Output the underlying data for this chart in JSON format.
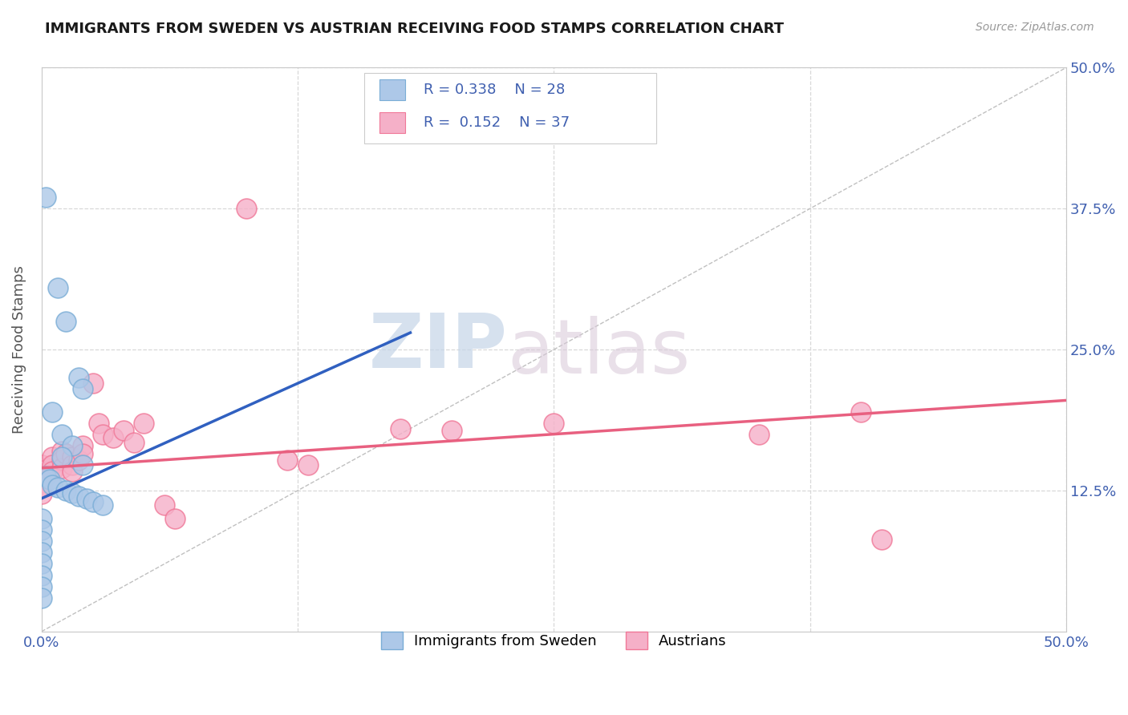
{
  "title": "IMMIGRANTS FROM SWEDEN VS AUSTRIAN RECEIVING FOOD STAMPS CORRELATION CHART",
  "source": "Source: ZipAtlas.com",
  "ylabel": "Receiving Food Stamps",
  "xlim": [
    0.0,
    0.5
  ],
  "ylim": [
    0.0,
    0.5
  ],
  "xticks": [
    0.0,
    0.125,
    0.25,
    0.375,
    0.5
  ],
  "xticklabels": [
    "0.0%",
    "",
    "",
    "",
    "50.0%"
  ],
  "yticks": [
    0.0,
    0.125,
    0.25,
    0.375,
    0.5
  ],
  "yticklabels": [
    "",
    "12.5%",
    "25.0%",
    "37.5%",
    "50.0%"
  ],
  "sweden_color": "#adc8e8",
  "austria_color": "#f5b0c8",
  "sweden_edge": "#7aadd6",
  "austria_edge": "#f07898",
  "line_sweden_color": "#3060c0",
  "line_austria_color": "#e86080",
  "diagonal_color": "#c0c0c0",
  "R_sweden": 0.338,
  "N_sweden": 28,
  "R_austria": 0.152,
  "N_austria": 37,
  "watermark_zip": "ZIP",
  "watermark_atlas": "atlas",
  "background_color": "#ffffff",
  "grid_color": "#d8d8d8",
  "title_color": "#1a1a1a",
  "tick_color": "#4060b0",
  "label_color": "#4060b0",
  "sweden_points": [
    [
      0.002,
      0.385
    ],
    [
      0.008,
      0.305
    ],
    [
      0.012,
      0.275
    ],
    [
      0.018,
      0.225
    ],
    [
      0.02,
      0.215
    ],
    [
      0.005,
      0.195
    ],
    [
      0.01,
      0.175
    ],
    [
      0.015,
      0.165
    ],
    [
      0.01,
      0.155
    ],
    [
      0.02,
      0.148
    ],
    [
      0.002,
      0.138
    ],
    [
      0.004,
      0.135
    ],
    [
      0.005,
      0.13
    ],
    [
      0.008,
      0.128
    ],
    [
      0.012,
      0.125
    ],
    [
      0.015,
      0.123
    ],
    [
      0.018,
      0.12
    ],
    [
      0.022,
      0.118
    ],
    [
      0.025,
      0.115
    ],
    [
      0.03,
      0.112
    ],
    [
      0.0,
      0.1
    ],
    [
      0.0,
      0.09
    ],
    [
      0.0,
      0.08
    ],
    [
      0.0,
      0.07
    ],
    [
      0.0,
      0.06
    ],
    [
      0.0,
      0.05
    ],
    [
      0.0,
      0.04
    ],
    [
      0.0,
      0.03
    ]
  ],
  "austria_points": [
    [
      0.0,
      0.148
    ],
    [
      0.0,
      0.143
    ],
    [
      0.0,
      0.138
    ],
    [
      0.0,
      0.132
    ],
    [
      0.0,
      0.128
    ],
    [
      0.0,
      0.122
    ],
    [
      0.005,
      0.155
    ],
    [
      0.005,
      0.148
    ],
    [
      0.005,
      0.142
    ],
    [
      0.01,
      0.16
    ],
    [
      0.01,
      0.152
    ],
    [
      0.01,
      0.145
    ],
    [
      0.012,
      0.158
    ],
    [
      0.015,
      0.155
    ],
    [
      0.015,
      0.148
    ],
    [
      0.015,
      0.142
    ],
    [
      0.018,
      0.152
    ],
    [
      0.02,
      0.165
    ],
    [
      0.02,
      0.158
    ],
    [
      0.025,
      0.22
    ],
    [
      0.028,
      0.185
    ],
    [
      0.03,
      0.175
    ],
    [
      0.035,
      0.172
    ],
    [
      0.04,
      0.178
    ],
    [
      0.045,
      0.168
    ],
    [
      0.05,
      0.185
    ],
    [
      0.06,
      0.112
    ],
    [
      0.065,
      0.1
    ],
    [
      0.1,
      0.375
    ],
    [
      0.12,
      0.152
    ],
    [
      0.13,
      0.148
    ],
    [
      0.175,
      0.18
    ],
    [
      0.2,
      0.178
    ],
    [
      0.25,
      0.185
    ],
    [
      0.35,
      0.175
    ],
    [
      0.4,
      0.195
    ],
    [
      0.41,
      0.082
    ]
  ]
}
